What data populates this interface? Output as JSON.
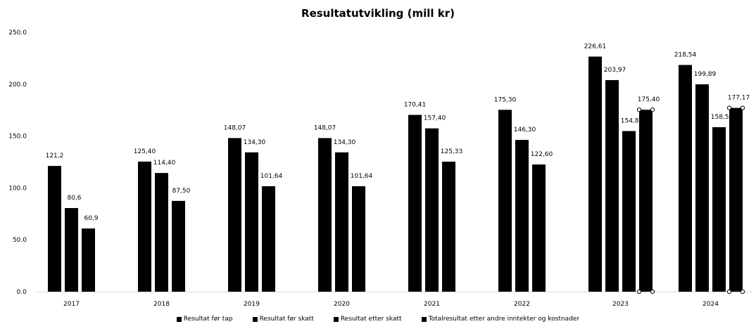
{
  "chart_data": {
    "type": "bar",
    "title": "Resultatutvikling (mill kr)",
    "xlabel": "",
    "ylabel": "",
    "ylim": [
      0,
      250
    ],
    "yticks": [
      "0.0",
      "50.0",
      "100.0",
      "150.0",
      "200.0",
      "250.0"
    ],
    "ytick_values": [
      0,
      50,
      100,
      150,
      200,
      250
    ],
    "grid": false,
    "legend_position": "bottom",
    "categories": [
      "2017",
      "2018",
      "2019",
      "2020",
      "2021",
      "2022",
      "2023",
      "2024"
    ],
    "series": [
      {
        "name": "Resultat før tap",
        "color": "#000000",
        "values": [
          121.2,
          125.4,
          148.07,
          148.07,
          170.41,
          175.3,
          226.61,
          218.54
        ],
        "labels": [
          "121,2",
          "125,40",
          "148,07",
          "148,07",
          "170,41",
          "175,30",
          "226,61",
          "218,54"
        ]
      },
      {
        "name": "Resultat før skatt",
        "color": "#000000",
        "values": [
          80.6,
          114.4,
          134.3,
          134.3,
          157.4,
          146.3,
          203.97,
          199.89
        ],
        "labels": [
          "80,6",
          "114,40",
          "134,30",
          "134,30",
          "157,40",
          "146,30",
          "203,97",
          "199,89"
        ]
      },
      {
        "name": "Resultat etter skatt",
        "color": "#000000",
        "values": [
          60.9,
          87.5,
          101.64,
          101.64,
          125.33,
          122.6,
          154.82,
          158.58
        ],
        "labels": [
          "60,9",
          "87,50",
          "101,64",
          "101,64",
          "125,33",
          "122,60",
          "154,82",
          "158,58"
        ]
      },
      {
        "name": "Totalresultat etter andre inntekter og kostnader",
        "color": "#000000",
        "values": [
          null,
          null,
          null,
          null,
          null,
          null,
          175.4,
          177.17
        ],
        "labels": [
          null,
          null,
          null,
          null,
          null,
          null,
          "175,40",
          "177,17"
        ]
      }
    ]
  }
}
